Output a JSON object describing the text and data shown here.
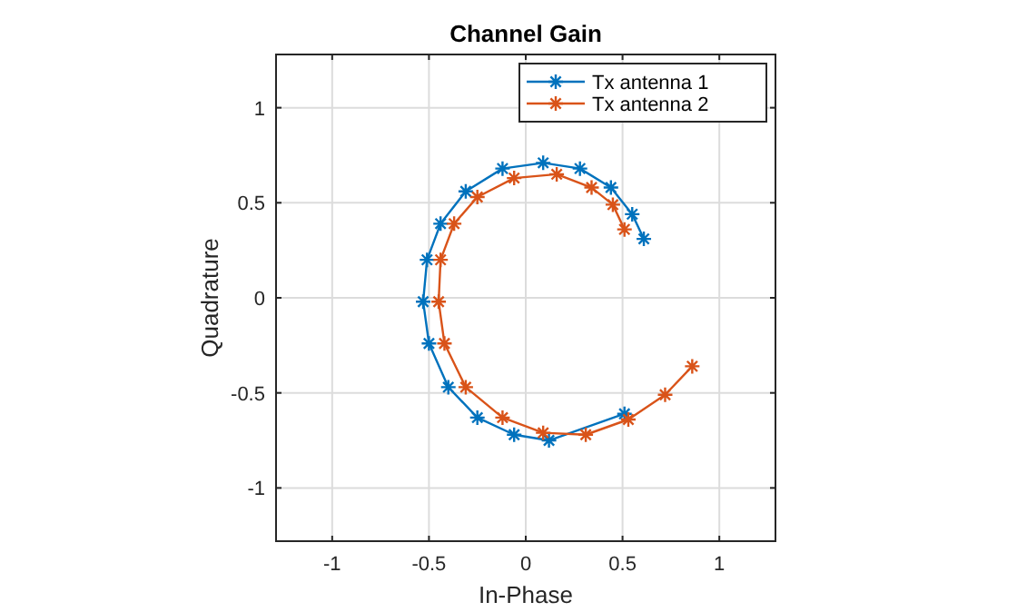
{
  "chart_data": {
    "type": "line",
    "title": "Channel Gain",
    "xlabel": "In-Phase",
    "ylabel": "Quadrature",
    "xlim": [
      -1.29,
      1.29
    ],
    "ylim": [
      -1.28,
      1.28
    ],
    "xticks": [
      -1,
      -0.5,
      0,
      0.5,
      1
    ],
    "yticks": [
      -1,
      -0.5,
      0,
      0.5,
      1
    ],
    "grid": true,
    "legend": "top right",
    "marker": "cross",
    "line_style": "solid",
    "series": [
      {
        "name": "Tx antenna 1",
        "color": "#0072bd",
        "x": [
          0.61,
          0.55,
          0.44,
          0.28,
          0.09,
          -0.12,
          -0.31,
          -0.44,
          -0.51,
          -0.53,
          -0.5,
          -0.4,
          -0.25,
          -0.06,
          0.12,
          0.51
        ],
        "values": [
          0.31,
          0.44,
          0.58,
          0.68,
          0.71,
          0.68,
          0.56,
          0.39,
          0.2,
          -0.02,
          -0.24,
          -0.47,
          -0.63,
          -0.72,
          -0.75,
          -0.61
        ]
      },
      {
        "name": "Tx antenna 2",
        "color": "#d95319",
        "x": [
          0.51,
          0.45,
          0.34,
          0.16,
          -0.06,
          -0.25,
          -0.37,
          -0.44,
          -0.45,
          -0.42,
          -0.31,
          -0.12,
          0.09,
          0.31,
          0.53,
          0.72,
          0.86
        ],
        "values": [
          0.36,
          0.49,
          0.58,
          0.65,
          0.63,
          0.53,
          0.39,
          0.2,
          -0.02,
          -0.24,
          -0.47,
          -0.63,
          -0.71,
          -0.72,
          -0.64,
          -0.51,
          -0.36
        ]
      }
    ]
  }
}
